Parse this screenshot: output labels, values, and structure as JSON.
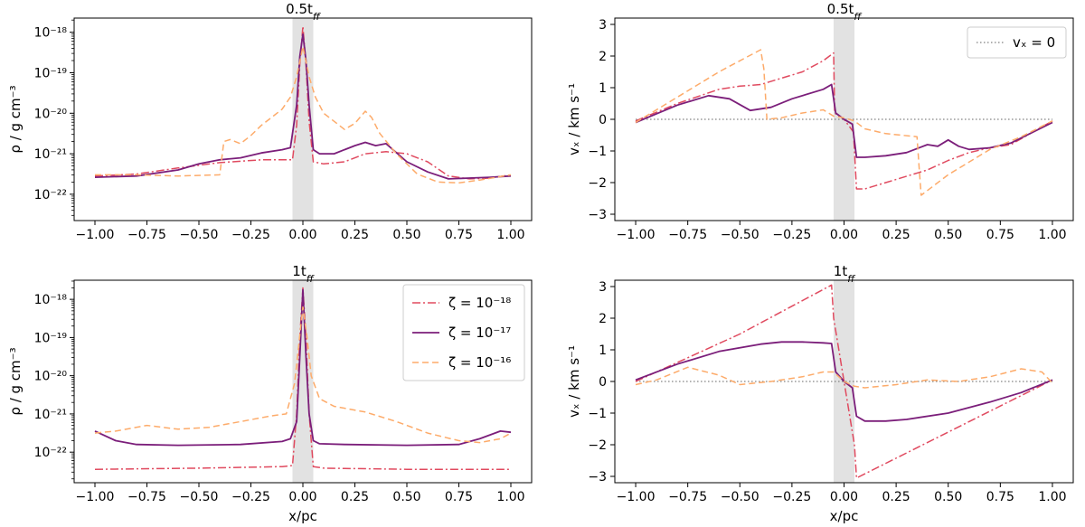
{
  "colors": {
    "zeta_1e18": "#e04a5f",
    "zeta_1e17": "#7b1e7a",
    "zeta_1e16": "#fdab6a",
    "shade": "#e2e2e2",
    "zero_line": "#808080"
  },
  "x_axis_label": "x/pc",
  "chart_data": [
    {
      "id": "rho_05",
      "type": "line",
      "title_main": "0.5t",
      "title_sub": "ff",
      "ylabel": "ρ / g cm⁻³",
      "yscale": "log",
      "xlim": [
        -1.1,
        1.1
      ],
      "ylim_log10": [
        -22.65,
        -17.65
      ],
      "shaded_region": [
        -0.05,
        0.05
      ],
      "xticks": [
        "−1.00",
        "−0.75",
        "−0.50",
        "−0.25",
        "0.00",
        "0.25",
        "0.50",
        "0.75",
        "1.00"
      ],
      "yticks": [
        {
          "exp": -18,
          "text": "10⁻¹⁸"
        },
        {
          "exp": -19,
          "text": "10⁻¹⁹"
        },
        {
          "exp": -20,
          "text": "10⁻²⁰"
        },
        {
          "exp": -21,
          "text": "10⁻²¹"
        },
        {
          "exp": -22,
          "text": "10⁻²²"
        }
      ],
      "series": [
        {
          "name": "ζ = 10⁻¹⁸",
          "style": "dashdot",
          "color_key": "zeta_1e18",
          "x": [
            -1,
            -0.8,
            -0.6,
            -0.4,
            -0.2,
            -0.1,
            -0.05,
            -0.03,
            -0.015,
            0,
            0.015,
            0.03,
            0.05,
            0.1,
            0.2,
            0.3,
            0.4,
            0.5,
            0.6,
            0.7,
            0.8,
            0.9,
            1
          ],
          "y": [
            -21.55,
            -21.5,
            -21.35,
            -21.22,
            -21.15,
            -21.15,
            -21.15,
            -20.3,
            -18.8,
            -17.85,
            -18.8,
            -20.2,
            -21.2,
            -21.25,
            -21.2,
            -21.0,
            -20.95,
            -21.0,
            -21.2,
            -21.55,
            -21.62,
            -21.6,
            -21.52
          ]
        },
        {
          "name": "ζ = 10⁻¹⁷",
          "style": "solid",
          "color_key": "zeta_1e17",
          "x": [
            -1,
            -0.8,
            -0.6,
            -0.5,
            -0.4,
            -0.3,
            -0.2,
            -0.1,
            -0.06,
            -0.03,
            -0.015,
            0,
            0.015,
            0.03,
            0.05,
            0.08,
            0.15,
            0.25,
            0.3,
            0.35,
            0.4,
            0.5,
            0.6,
            0.7,
            0.8,
            0.9,
            1
          ],
          "y": [
            -21.58,
            -21.55,
            -21.4,
            -21.25,
            -21.15,
            -21.1,
            -20.98,
            -20.9,
            -20.85,
            -19.8,
            -18.6,
            -18.05,
            -18.7,
            -19.8,
            -20.9,
            -21.0,
            -21.0,
            -20.8,
            -20.72,
            -20.8,
            -20.75,
            -21.2,
            -21.45,
            -21.62,
            -21.6,
            -21.58,
            -21.55
          ]
        },
        {
          "name": "ζ = 10⁻¹⁶",
          "style": "dashed",
          "color_key": "zeta_1e16",
          "x": [
            -1,
            -0.8,
            -0.6,
            -0.4,
            -0.38,
            -0.35,
            -0.3,
            -0.25,
            -0.2,
            -0.15,
            -0.1,
            -0.06,
            -0.03,
            0,
            0.03,
            0.06,
            0.1,
            0.15,
            0.2,
            0.25,
            0.3,
            0.33,
            0.37,
            0.45,
            0.55,
            0.65,
            0.75,
            0.85,
            1
          ],
          "y": [
            -21.52,
            -21.52,
            -21.55,
            -21.52,
            -20.7,
            -20.65,
            -20.75,
            -20.55,
            -20.3,
            -20.1,
            -19.9,
            -19.6,
            -19.1,
            -18.35,
            -19.1,
            -19.6,
            -20.0,
            -20.2,
            -20.4,
            -20.25,
            -19.95,
            -20.1,
            -20.5,
            -21.0,
            -21.5,
            -21.7,
            -21.72,
            -21.65,
            -21.52
          ]
        }
      ]
    },
    {
      "id": "vx_05",
      "type": "line",
      "title_main": "0.5t",
      "title_sub": "ff",
      "ylabel": "vₓ / km s⁻¹",
      "yscale": "linear",
      "xlim": [
        -1.1,
        1.1
      ],
      "ylim": [
        -3.2,
        3.2
      ],
      "shaded_region": [
        -0.05,
        0.05
      ],
      "xticks": [
        "−1.00",
        "−0.75",
        "−0.50",
        "−0.25",
        "0.00",
        "0.25",
        "0.50",
        "0.75",
        "1.00"
      ],
      "yticks": [
        "3",
        "2",
        "1",
        "0",
        "−1",
        "−2",
        "−3"
      ],
      "legend_zero": "vₓ = 0",
      "series": [
        {
          "name": "ζ = 10⁻¹⁸",
          "style": "dashdot",
          "color_key": "zeta_1e18",
          "x": [
            -1,
            -0.8,
            -0.6,
            -0.5,
            -0.4,
            -0.2,
            -0.1,
            -0.05,
            -0.045,
            0,
            0.045,
            0.06,
            0.1,
            0.2,
            0.4,
            0.5,
            0.6,
            0.7,
            0.8,
            1
          ],
          "y": [
            -0.05,
            0.5,
            0.95,
            1.05,
            1.1,
            1.5,
            1.85,
            2.1,
            0.2,
            0.0,
            -0.4,
            -2.2,
            -2.2,
            -2.0,
            -1.6,
            -1.3,
            -1.05,
            -0.9,
            -0.8,
            -0.05
          ]
        },
        {
          "name": "ζ = 10⁻¹⁷",
          "style": "solid",
          "color_key": "zeta_1e17",
          "x": [
            -1,
            -0.8,
            -0.65,
            -0.55,
            -0.45,
            -0.35,
            -0.25,
            -0.1,
            -0.06,
            -0.04,
            0,
            0.04,
            0.06,
            0.1,
            0.2,
            0.3,
            0.4,
            0.45,
            0.5,
            0.55,
            0.6,
            0.7,
            0.8,
            1
          ],
          "y": [
            -0.1,
            0.45,
            0.75,
            0.65,
            0.28,
            0.38,
            0.65,
            0.95,
            1.1,
            0.2,
            0.0,
            -0.15,
            -1.2,
            -1.2,
            -1.15,
            -1.05,
            -0.8,
            -0.85,
            -0.65,
            -0.85,
            -0.95,
            -0.9,
            -0.75,
            -0.1
          ]
        },
        {
          "name": "ζ = 10⁻¹⁶",
          "style": "dashed",
          "color_key": "zeta_1e16",
          "x": [
            -1,
            -0.8,
            -0.6,
            -0.4,
            -0.385,
            -0.37,
            -0.3,
            -0.2,
            -0.1,
            -0.05,
            0,
            0.05,
            0.1,
            0.2,
            0.35,
            0.36,
            0.37,
            0.5,
            0.7,
            0.85,
            1
          ],
          "y": [
            -0.1,
            0.7,
            1.5,
            2.2,
            1.6,
            0.0,
            0.05,
            0.2,
            0.3,
            0.1,
            0.05,
            -0.05,
            -0.3,
            -0.45,
            -0.55,
            -1.5,
            -2.4,
            -1.75,
            -0.95,
            -0.55,
            -0.05
          ]
        }
      ]
    },
    {
      "id": "rho_1",
      "type": "line",
      "title_main": "1t",
      "title_sub": "ff",
      "ylabel": "ρ / g cm⁻³",
      "yscale": "log",
      "xlim": [
        -1.1,
        1.1
      ],
      "ylim_log10": [
        -22.8,
        -17.5
      ],
      "shaded_region": [
        -0.05,
        0.05
      ],
      "xticks": [
        "−1.00",
        "−0.75",
        "−0.50",
        "−0.25",
        "0.00",
        "0.25",
        "0.50",
        "0.75",
        "1.00"
      ],
      "yticks": [
        {
          "exp": -18,
          "text": "10⁻¹⁸"
        },
        {
          "exp": -19,
          "text": "10⁻¹⁹"
        },
        {
          "exp": -20,
          "text": "10⁻²⁰"
        },
        {
          "exp": -21,
          "text": "10⁻²¹"
        },
        {
          "exp": -22,
          "text": "10⁻²²"
        }
      ],
      "legend": [
        "ζ = 10⁻¹⁸",
        "ζ = 10⁻¹⁷",
        "ζ = 10⁻¹⁶"
      ],
      "series": [
        {
          "name": "ζ = 10⁻¹⁸",
          "style": "dashdot",
          "color_key": "zeta_1e18",
          "x": [
            -1,
            -0.5,
            -0.1,
            -0.05,
            -0.03,
            -0.015,
            0,
            0.015,
            0.03,
            0.05,
            0.1,
            0.5,
            1
          ],
          "y": [
            -22.45,
            -22.42,
            -22.38,
            -22.35,
            -21.0,
            -19.0,
            -17.7,
            -19.0,
            -21.0,
            -22.38,
            -22.42,
            -22.45,
            -22.45
          ]
        },
        {
          "name": "ζ = 10⁻¹⁷",
          "style": "solid",
          "color_key": "zeta_1e17",
          "x": [
            -1,
            -0.9,
            -0.8,
            -0.6,
            -0.3,
            -0.1,
            -0.06,
            -0.03,
            -0.015,
            0,
            0.015,
            0.03,
            0.05,
            0.08,
            0.2,
            0.5,
            0.75,
            0.85,
            0.95,
            1
          ],
          "y": [
            -21.45,
            -21.7,
            -21.8,
            -21.82,
            -21.8,
            -21.72,
            -21.65,
            -21.2,
            -19.5,
            -17.75,
            -19.5,
            -21.0,
            -21.7,
            -21.78,
            -21.8,
            -21.82,
            -21.8,
            -21.65,
            -21.45,
            -21.48
          ]
        },
        {
          "name": "ζ = 10⁻¹⁶",
          "style": "dashed",
          "color_key": "zeta_1e16",
          "x": [
            -1,
            -0.9,
            -0.75,
            -0.6,
            -0.45,
            -0.3,
            -0.15,
            -0.08,
            -0.04,
            -0.02,
            0,
            0.02,
            0.04,
            0.08,
            0.15,
            0.3,
            0.45,
            0.6,
            0.75,
            0.85,
            0.95,
            1
          ],
          "y": [
            -21.5,
            -21.45,
            -21.3,
            -21.4,
            -21.35,
            -21.2,
            -21.05,
            -21.0,
            -20.2,
            -19.2,
            -18.2,
            -19.0,
            -20.0,
            -20.6,
            -20.8,
            -20.95,
            -21.2,
            -21.5,
            -21.7,
            -21.75,
            -21.65,
            -21.5
          ]
        }
      ]
    },
    {
      "id": "vx_1",
      "type": "line",
      "title_main": "1t",
      "title_sub": "ff",
      "ylabel": "vₓ / km s⁻¹",
      "yscale": "linear",
      "xlim": [
        -1.1,
        1.1
      ],
      "ylim": [
        -3.2,
        3.2
      ],
      "shaded_region": [
        -0.05,
        0.05
      ],
      "xticks": [
        "−1.00",
        "−0.75",
        "−0.50",
        "−0.25",
        "0.00",
        "0.25",
        "0.50",
        "0.75",
        "1.00"
      ],
      "yticks": [
        "3",
        "2",
        "1",
        "0",
        "−1",
        "−2",
        "−3"
      ],
      "series": [
        {
          "name": "ζ = 10⁻¹⁸",
          "style": "dashdot",
          "color_key": "zeta_1e18",
          "x": [
            -1,
            -0.5,
            -0.06,
            -0.05,
            0,
            0.05,
            0.06,
            0.5,
            1
          ],
          "y": [
            0.0,
            1.5,
            3.05,
            2.0,
            0.0,
            -2.0,
            -3.05,
            -1.6,
            0.05
          ]
        },
        {
          "name": "ζ = 10⁻¹⁷",
          "style": "solid",
          "color_key": "zeta_1e17",
          "x": [
            -1,
            -0.8,
            -0.6,
            -0.4,
            -0.3,
            -0.2,
            -0.1,
            -0.06,
            -0.04,
            0,
            0.04,
            0.06,
            0.1,
            0.2,
            0.3,
            0.5,
            0.7,
            0.85,
            1
          ],
          "y": [
            0.05,
            0.55,
            0.95,
            1.18,
            1.25,
            1.25,
            1.22,
            1.2,
            0.3,
            0.0,
            -0.2,
            -1.1,
            -1.25,
            -1.25,
            -1.2,
            -1.0,
            -0.65,
            -0.35,
            0.05
          ]
        },
        {
          "name": "ζ = 10⁻¹⁶",
          "style": "dashed",
          "color_key": "zeta_1e16",
          "x": [
            -1,
            -0.9,
            -0.75,
            -0.6,
            -0.5,
            -0.35,
            -0.2,
            -0.1,
            -0.05,
            0,
            0.05,
            0.1,
            0.25,
            0.4,
            0.55,
            0.7,
            0.85,
            0.95,
            1
          ],
          "y": [
            -0.1,
            0.05,
            0.45,
            0.2,
            -0.1,
            0.0,
            0.15,
            0.3,
            0.3,
            0.0,
            -0.15,
            -0.2,
            -0.1,
            0.05,
            0.0,
            0.15,
            0.4,
            0.3,
            -0.05
          ]
        }
      ]
    }
  ]
}
